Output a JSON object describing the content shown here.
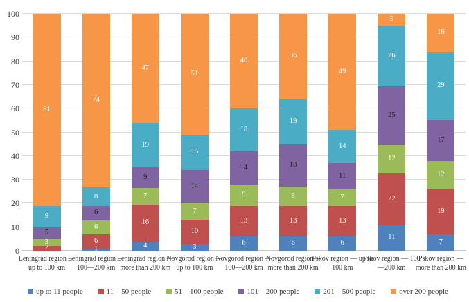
{
  "chart_data": {
    "type": "bar",
    "variant": "stacked-100-percent-column",
    "title": "",
    "xlabel": "",
    "ylabel": "",
    "ylim": [
      0,
      100
    ],
    "yticks": [
      0,
      10,
      20,
      30,
      40,
      50,
      60,
      70,
      80,
      90,
      100
    ],
    "grid": true,
    "legend_position": "bottom",
    "categories": [
      "Leningrad region — up to 100 km",
      "Leningrad region — 100—200 km",
      "Leningrad region — more than 200 km",
      "Novgorod region — up to 100 km",
      "Novgorod region — 100—200 km",
      "Novgorod region— more than 200  km",
      "Pskov region — up to 100 km",
      "Pskov region — 100—200 km",
      "Pskov region — more than 200 km"
    ],
    "series": [
      {
        "name": "up to 11 people",
        "color": "#4F81BD",
        "label_color": "#FFFFFF",
        "values": [
          0,
          1,
          4,
          3,
          6,
          6,
          6,
          11,
          7
        ]
      },
      {
        "name": "11—50 people",
        "color": "#C0504D",
        "label_color": "#FFFFFF",
        "values": [
          2,
          6,
          16,
          10,
          13,
          13,
          13,
          22,
          19
        ]
      },
      {
        "name": "51—100 people",
        "color": "#9BBB59",
        "label_color": "#FFFFFF",
        "values": [
          3,
          6,
          7,
          7,
          9,
          8,
          7,
          12,
          12
        ]
      },
      {
        "name": "101—200 people",
        "color": "#8064A2",
        "label_color": "#1F1F1F",
        "values": [
          5,
          6,
          9,
          14,
          14,
          18,
          11,
          25,
          17
        ]
      },
      {
        "name": "201—500 people",
        "color": "#4BACC6",
        "label_color": "#FFFFFF",
        "values": [
          9,
          8,
          19,
          15,
          18,
          19,
          14,
          26,
          29
        ]
      },
      {
        "name": "over 200 people",
        "color": "#F79646",
        "label_color": "#FFFFFF",
        "values": [
          81,
          74,
          47,
          51,
          40,
          36,
          49,
          5,
          16
        ]
      }
    ],
    "colors": {
      "gridline": "#D9D9D9",
      "axis_text": "#3A3A3A",
      "background": "#FFFFFF"
    }
  }
}
